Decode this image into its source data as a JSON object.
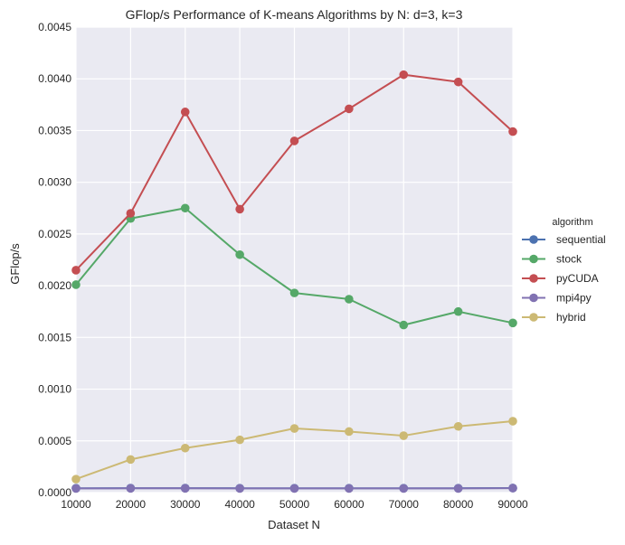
{
  "chart_data": {
    "type": "line",
    "title": "GFlop/s Performance of K-means Algorithms by N: d=3, k=3",
    "xlabel": "Dataset N",
    "ylabel": "GFlop/s",
    "x": [
      10000,
      20000,
      30000,
      40000,
      50000,
      60000,
      70000,
      80000,
      90000
    ],
    "x_tick_labels": [
      "10000",
      "20000",
      "30000",
      "40000",
      "50000",
      "60000",
      "70000",
      "80000",
      "90000"
    ],
    "y_ticks": [
      0.0,
      0.0005,
      0.001,
      0.0015,
      0.002,
      0.0025,
      0.003,
      0.0035,
      0.004,
      0.0045
    ],
    "y_tick_labels": [
      "0.0000",
      "0.0005",
      "0.0010",
      "0.0015",
      "0.0020",
      "0.0025",
      "0.0030",
      "0.0035",
      "0.0040",
      "0.0045"
    ],
    "xlim": [
      10000,
      90000
    ],
    "ylim": [
      0,
      0.0045
    ],
    "grid": true,
    "legend": {
      "title": "algorithm",
      "placement": "right"
    },
    "series": [
      {
        "name": "sequential",
        "color": "#4c72b0",
        "values": [
          4.2e-05,
          4.3e-05,
          4.3e-05,
          4.2e-05,
          4.2e-05,
          4.2e-05,
          4.2e-05,
          4.2e-05,
          4.4e-05
        ]
      },
      {
        "name": "stock",
        "color": "#55a868",
        "values": [
          0.00201,
          0.00265,
          0.00275,
          0.0023,
          0.00193,
          0.00187,
          0.00162,
          0.00175,
          0.00164
        ]
      },
      {
        "name": "pyCUDA",
        "color": "#c44e52",
        "values": [
          0.00215,
          0.0027,
          0.00368,
          0.00274,
          0.0034,
          0.00371,
          0.00404,
          0.00397,
          0.00349
        ]
      },
      {
        "name": "mpi4py",
        "color": "#8172b2",
        "values": [
          4e-05,
          4.1e-05,
          4.1e-05,
          4e-05,
          4e-05,
          4e-05,
          4e-05,
          4e-05,
          4.3e-05
        ]
      },
      {
        "name": "hybrid",
        "color": "#ccb974",
        "values": [
          0.00013,
          0.00032,
          0.00043,
          0.00051,
          0.00062,
          0.00059,
          0.00055,
          0.00064,
          0.00069
        ]
      }
    ]
  }
}
